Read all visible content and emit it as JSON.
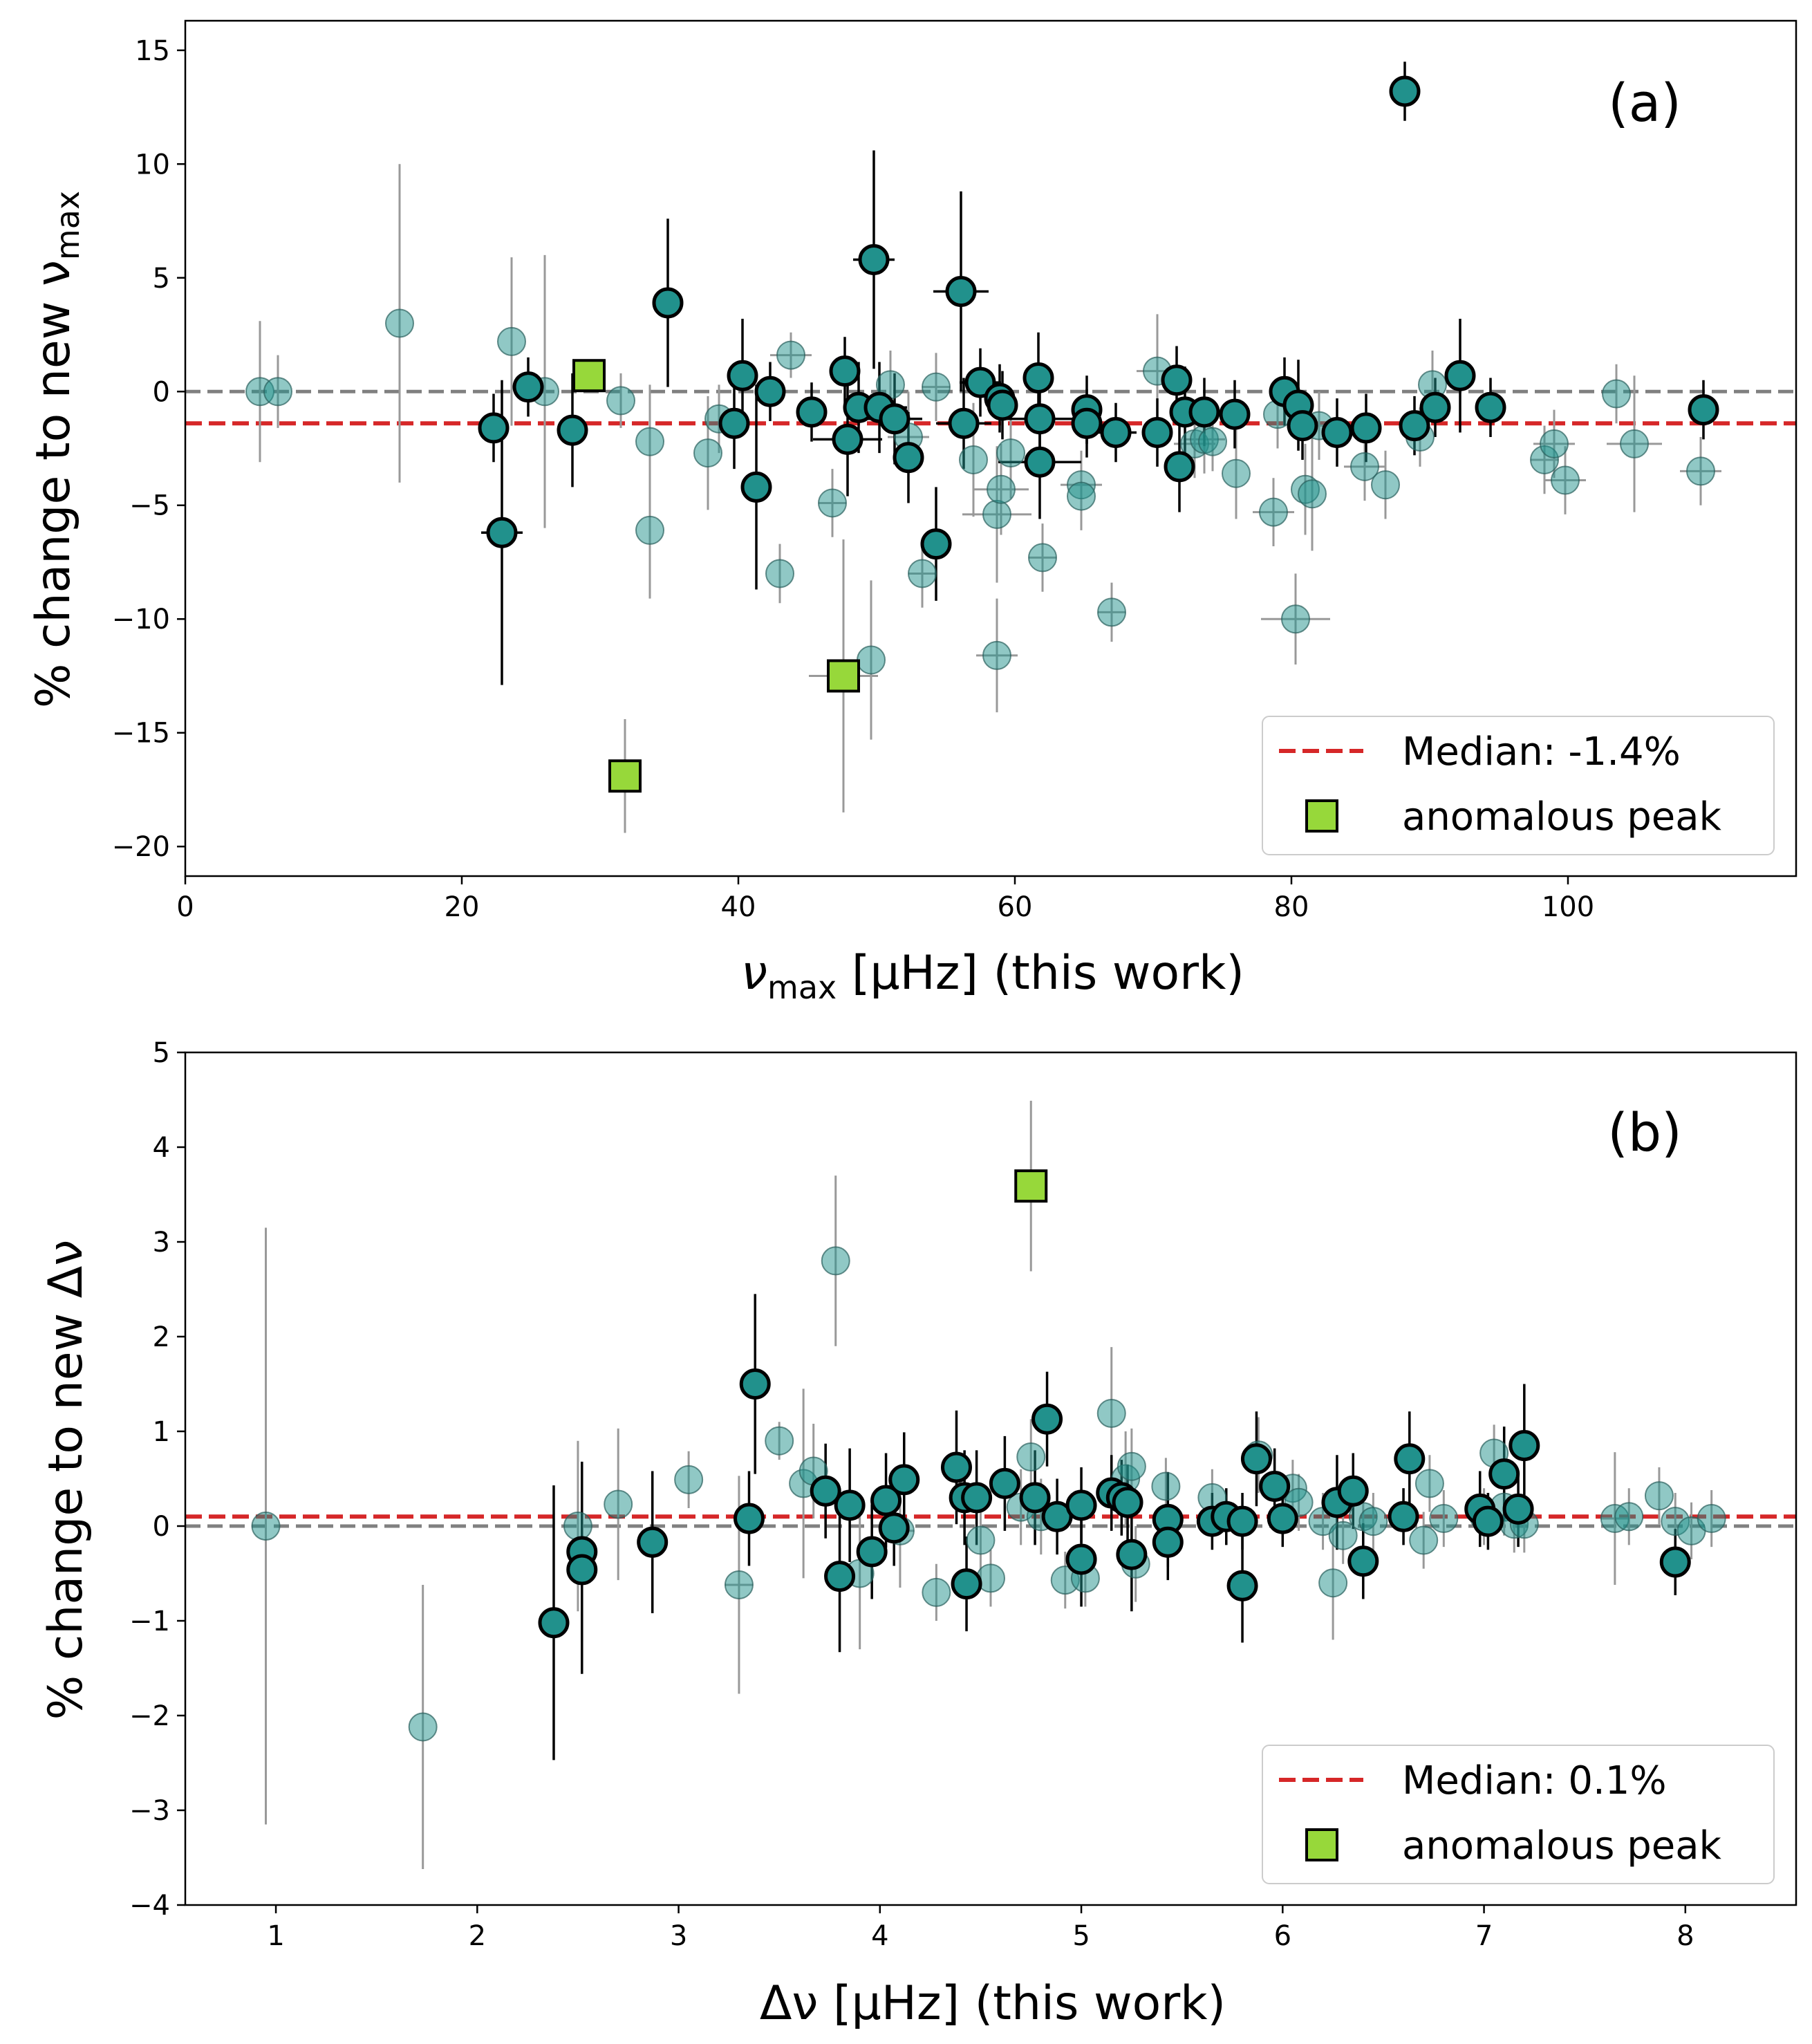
{
  "colors": {
    "median_line": "#d62728",
    "zero_line": "#808080",
    "point_fill": "#21918c",
    "point_faded_fill": "#21918c",
    "anomalous_fill": "#97d83a",
    "errorbar_strong": "#000000",
    "errorbar_faded": "#999999"
  },
  "chart_data": [
    {
      "type": "scatter",
      "panel_label": "(a)",
      "xlabel": "ν_max [μHz] (this work)",
      "xlabel_main": "ν",
      "xlabel_sub": "max",
      "xlabel_rest": " [μHz] (this work)",
      "ylabel": "% change to new ν_max",
      "ylabel_main": "% change to new ν",
      "ylabel_sub": "max",
      "xlim": [
        0,
        116.5
      ],
      "ylim": [
        -21.3,
        16.3
      ],
      "xticks": [
        0,
        20,
        40,
        60,
        80,
        100
      ],
      "yticks": [
        -20,
        -15,
        -10,
        -5,
        0,
        5,
        10,
        15
      ],
      "xtick_labels": [
        "0",
        "20",
        "40",
        "60",
        "80",
        "100"
      ],
      "ytick_labels": [
        "−20",
        "−15",
        "−10",
        "−5",
        "0",
        "5",
        "10",
        "15"
      ],
      "median": -1.4,
      "legend": {
        "location": "lower right",
        "median_label": "Median: -1.4%",
        "anomalous_label": "anomalous peak"
      },
      "faded_points": [
        [
          5.4,
          0.0,
          3.1,
          0
        ],
        [
          6.7,
          0.0,
          1.6,
          0
        ],
        [
          15.5,
          3.0,
          7.0,
          0
        ],
        [
          23.6,
          2.2,
          3.7,
          0
        ],
        [
          26.0,
          0.0,
          6.0,
          0
        ],
        [
          31.5,
          -0.4,
          1.2,
          0
        ],
        [
          33.6,
          -2.2,
          2.5,
          0
        ],
        [
          33.6,
          -6.1,
          3.0,
          0
        ],
        [
          37.8,
          -2.7,
          2.5,
          0
        ],
        [
          38.6,
          -1.2,
          1.5,
          0
        ],
        [
          43.0,
          -8.0,
          1.3,
          0
        ],
        [
          43.8,
          1.6,
          1.0,
          1.5
        ],
        [
          46.8,
          -4.9,
          1.5,
          1.0
        ],
        [
          49.6,
          -11.8,
          3.5,
          0
        ],
        [
          51.0,
          0.3,
          1.5,
          0
        ],
        [
          52.3,
          -2.0,
          2.0,
          1.5
        ],
        [
          53.3,
          -8.0,
          1.5,
          1.0
        ],
        [
          54.3,
          0.2,
          1.5,
          1.0
        ],
        [
          57.0,
          -3.0,
          2.5,
          0
        ],
        [
          58.7,
          -5.4,
          3.0,
          2.5
        ],
        [
          58.7,
          -11.6,
          2.5,
          1.5
        ],
        [
          59.0,
          -4.3,
          2.0,
          2.0
        ],
        [
          59.7,
          -2.7,
          2.0,
          0
        ],
        [
          62.0,
          -7.3,
          1.5,
          1.0
        ],
        [
          64.8,
          -4.1,
          1.5,
          1.5
        ],
        [
          64.8,
          -4.6,
          1.5,
          0
        ],
        [
          67.0,
          -9.7,
          1.3,
          1.0
        ],
        [
          70.3,
          0.9,
          2.5,
          1.5
        ],
        [
          73.0,
          -2.3,
          1.5,
          1.5
        ],
        [
          73.7,
          -2.1,
          1.5,
          1.5
        ],
        [
          74.3,
          -2.2,
          1.3,
          0
        ],
        [
          76.0,
          -3.6,
          2.0,
          0
        ],
        [
          78.7,
          -5.3,
          1.5,
          1.5
        ],
        [
          79.0,
          -1.0,
          1.5,
          0
        ],
        [
          80.3,
          -10.0,
          2.0,
          2.5
        ],
        [
          81.0,
          -4.3,
          2.0,
          0
        ],
        [
          81.5,
          -4.5,
          2.5,
          0
        ],
        [
          82.0,
          -1.5,
          1.5,
          1.5
        ],
        [
          85.3,
          -3.3,
          1.5,
          1.5
        ],
        [
          86.8,
          -4.1,
          1.5,
          0
        ],
        [
          89.3,
          -2.0,
          1.3,
          0
        ],
        [
          90.2,
          0.3,
          1.5,
          0
        ],
        [
          98.3,
          -3.0,
          1.5,
          1.0
        ],
        [
          99.0,
          -2.3,
          1.5,
          1.5
        ],
        [
          99.8,
          -3.9,
          1.5,
          1.5
        ],
        [
          103.5,
          -0.1,
          1.3,
          0
        ],
        [
          104.8,
          -2.3,
          3.0,
          2.0
        ],
        [
          109.6,
          -3.5,
          1.5,
          1.5
        ]
      ],
      "strong_points": [
        [
          22.3,
          -1.6,
          1.5,
          0
        ],
        [
          22.9,
          -6.2,
          6.7,
          1.5
        ],
        [
          24.8,
          0.2,
          1.3,
          0
        ],
        [
          28.0,
          -1.7,
          2.5,
          0
        ],
        [
          34.9,
          3.9,
          3.7,
          0
        ],
        [
          39.7,
          -1.4,
          2.0,
          0
        ],
        [
          40.3,
          0.7,
          2.5,
          0
        ],
        [
          41.3,
          -4.2,
          4.5,
          0
        ],
        [
          42.3,
          0.0,
          1.3,
          0
        ],
        [
          45.3,
          -0.9,
          1.3,
          0
        ],
        [
          47.7,
          0.9,
          1.5,
          1.0
        ],
        [
          47.9,
          -2.1,
          2.5,
          2.5
        ],
        [
          48.7,
          -0.7,
          2.0,
          0
        ],
        [
          49.8,
          5.8,
          4.8,
          1.5
        ],
        [
          50.2,
          -0.7,
          2.0,
          2.0
        ],
        [
          51.3,
          -1.2,
          2.0,
          2.0
        ],
        [
          52.3,
          -2.9,
          2.0,
          0
        ],
        [
          54.3,
          -6.7,
          2.5,
          0
        ],
        [
          56.1,
          4.4,
          4.4,
          2.0
        ],
        [
          56.3,
          -1.4,
          2.0,
          2.0
        ],
        [
          57.5,
          0.4,
          1.5,
          1.5
        ],
        [
          58.9,
          -0.3,
          1.5,
          0
        ],
        [
          59.1,
          -0.6,
          1.5,
          0
        ],
        [
          61.7,
          0.6,
          2.0,
          0
        ],
        [
          61.8,
          -1.2,
          1.5,
          2.5
        ],
        [
          61.8,
          -3.1,
          2.5,
          3.0
        ],
        [
          65.2,
          -0.8,
          1.5,
          0
        ],
        [
          65.2,
          -1.4,
          1.5,
          0
        ],
        [
          67.3,
          -1.8,
          1.3,
          1.5
        ],
        [
          70.3,
          -1.8,
          1.5,
          0
        ],
        [
          71.7,
          0.5,
          1.5,
          0
        ],
        [
          71.9,
          -3.3,
          2.0,
          0
        ],
        [
          72.3,
          -0.9,
          2.0,
          0
        ],
        [
          73.7,
          -0.9,
          1.5,
          0
        ],
        [
          75.9,
          -1.0,
          1.5,
          0
        ],
        [
          79.5,
          0.0,
          1.5,
          0
        ],
        [
          80.5,
          -0.6,
          2.0,
          0
        ],
        [
          80.8,
          -1.5,
          1.5,
          0
        ],
        [
          83.3,
          -1.8,
          1.5,
          0
        ],
        [
          85.4,
          -1.6,
          1.5,
          0
        ],
        [
          88.2,
          13.2,
          1.3,
          0
        ],
        [
          88.9,
          -1.5,
          1.3,
          0
        ],
        [
          92.2,
          0.7,
          2.5,
          0
        ],
        [
          90.4,
          -0.7,
          1.3,
          0
        ],
        [
          94.4,
          -0.7,
          1.3,
          0
        ],
        [
          109.8,
          -0.8,
          1.3,
          0
        ]
      ],
      "anomalous": [
        [
          29.2,
          0.7,
          0,
          0
        ],
        [
          31.8,
          -16.9,
          2.5,
          0
        ],
        [
          47.6,
          -12.5,
          6.0,
          2.5
        ]
      ]
    },
    {
      "type": "scatter",
      "panel_label": "(b)",
      "xlabel": "Δν [μHz] (this work)",
      "ylabel": "% change to new Δν",
      "xlim": [
        0.55,
        8.55
      ],
      "ylim": [
        -4,
        5
      ],
      "xticks": [
        1,
        2,
        3,
        4,
        5,
        6,
        7,
        8
      ],
      "yticks": [
        -4,
        -3,
        -2,
        -1,
        0,
        1,
        2,
        3,
        4,
        5
      ],
      "xtick_labels": [
        "1",
        "2",
        "3",
        "4",
        "5",
        "6",
        "7",
        "8"
      ],
      "ytick_labels": [
        "−4",
        "−3",
        "−2",
        "−1",
        "0",
        "1",
        "2",
        "3",
        "4",
        "5"
      ],
      "median": 0.1,
      "legend": {
        "location": "lower right",
        "median_label": "Median: 0.1%",
        "anomalous_label": "anomalous peak"
      },
      "faded_points": [
        [
          0.95,
          0.0,
          3.15,
          0
        ],
        [
          1.73,
          -2.12,
          1.5,
          0
        ],
        [
          2.5,
          0.0,
          0.9,
          0
        ],
        [
          2.7,
          0.23,
          0.8,
          0
        ],
        [
          3.05,
          0.49,
          0.3,
          0
        ],
        [
          3.3,
          -0.62,
          1.15,
          0.07
        ],
        [
          3.5,
          0.9,
          0.2,
          0
        ],
        [
          3.62,
          0.45,
          1.0,
          0
        ],
        [
          3.67,
          0.58,
          0.5,
          0
        ],
        [
          3.78,
          2.8,
          0.9,
          0
        ],
        [
          3.9,
          -0.5,
          0.8,
          0
        ],
        [
          4.1,
          -0.05,
          0.6,
          0.07
        ],
        [
          4.28,
          -0.7,
          0.3,
          0
        ],
        [
          4.5,
          -0.15,
          0.5,
          0
        ],
        [
          4.55,
          -0.55,
          0.3,
          0
        ],
        [
          4.7,
          0.2,
          0.4,
          0
        ],
        [
          4.75,
          0.73,
          0.4,
          0
        ],
        [
          4.8,
          0.1,
          0.4,
          0
        ],
        [
          4.92,
          -0.57,
          0.3,
          0
        ],
        [
          5.02,
          -0.55,
          0.3,
          0
        ],
        [
          5.15,
          1.19,
          0.7,
          0
        ],
        [
          5.22,
          0.5,
          0.5,
          0
        ],
        [
          5.25,
          0.63,
          0.4,
          0
        ],
        [
          5.27,
          -0.4,
          0.4,
          0
        ],
        [
          5.42,
          0.42,
          0.3,
          0
        ],
        [
          5.65,
          0.3,
          0.3,
          0
        ],
        [
          5.88,
          0.75,
          0.4,
          0
        ],
        [
          6.05,
          0.4,
          0.3,
          0
        ],
        [
          6.08,
          0.25,
          0.3,
          0
        ],
        [
          6.2,
          0.05,
          0.3,
          0
        ],
        [
          6.25,
          -0.6,
          0.6,
          0
        ],
        [
          6.3,
          -0.1,
          0.3,
          0
        ],
        [
          6.4,
          0.1,
          0.3,
          0
        ],
        [
          6.45,
          0.05,
          0.3,
          0
        ],
        [
          6.6,
          0.1,
          0.3,
          0
        ],
        [
          6.7,
          -0.15,
          0.3,
          0
        ],
        [
          6.73,
          0.45,
          0.3,
          0
        ],
        [
          6.8,
          0.08,
          0.3,
          0
        ],
        [
          7.0,
          0.1,
          0.3,
          0
        ],
        [
          7.05,
          0.77,
          0.3,
          0
        ],
        [
          7.1,
          0.2,
          0.3,
          0
        ],
        [
          7.15,
          0.02,
          0.3,
          0
        ],
        [
          7.2,
          0.02,
          0.3,
          0
        ],
        [
          7.65,
          0.08,
          0.7,
          0.07
        ],
        [
          7.72,
          0.1,
          0.3,
          0
        ],
        [
          7.87,
          0.32,
          0.3,
          0
        ],
        [
          7.95,
          0.05,
          0.3,
          0
        ],
        [
          8.03,
          -0.05,
          0.3,
          0
        ],
        [
          8.13,
          0.08,
          0.3,
          0
        ]
      ],
      "strong_points": [
        [
          2.38,
          -1.02,
          1.45,
          0
        ],
        [
          2.52,
          -0.27,
          0.95,
          0
        ],
        [
          2.52,
          -0.46,
          1.1,
          0
        ],
        [
          2.87,
          -0.17,
          0.75,
          0
        ],
        [
          3.35,
          0.08,
          0.5,
          0
        ],
        [
          3.38,
          1.5,
          0.95,
          0
        ],
        [
          3.73,
          0.37,
          0.5,
          0
        ],
        [
          3.8,
          -0.53,
          0.8,
          0
        ],
        [
          3.85,
          0.22,
          0.6,
          0
        ],
        [
          3.96,
          -0.27,
          0.5,
          0
        ],
        [
          4.03,
          0.27,
          0.5,
          0
        ],
        [
          4.07,
          -0.02,
          0.4,
          0
        ],
        [
          4.12,
          0.49,
          0.5,
          0
        ],
        [
          4.38,
          0.62,
          0.6,
          0
        ],
        [
          4.42,
          0.3,
          0.5,
          0
        ],
        [
          4.43,
          -0.61,
          0.5,
          0
        ],
        [
          4.48,
          0.3,
          0.5,
          0
        ],
        [
          4.62,
          0.45,
          0.5,
          0
        ],
        [
          4.77,
          0.3,
          0.5,
          0
        ],
        [
          4.83,
          1.13,
          0.5,
          0
        ],
        [
          4.88,
          0.1,
          0.4,
          0
        ],
        [
          5.0,
          0.22,
          0.4,
          0
        ],
        [
          5.0,
          -0.35,
          0.5,
          0
        ],
        [
          5.15,
          0.35,
          0.4,
          0
        ],
        [
          5.2,
          0.3,
          0.4,
          0
        ],
        [
          5.23,
          0.25,
          0.4,
          0
        ],
        [
          5.25,
          -0.3,
          0.6,
          0
        ],
        [
          5.43,
          0.07,
          0.5,
          0
        ],
        [
          5.43,
          -0.17,
          0.4,
          0
        ],
        [
          5.65,
          0.05,
          0.3,
          0
        ],
        [
          5.72,
          0.1,
          0.3,
          0
        ],
        [
          5.8,
          0.05,
          0.3,
          0
        ],
        [
          5.8,
          -0.63,
          0.6,
          0
        ],
        [
          5.87,
          0.71,
          0.5,
          0
        ],
        [
          5.96,
          0.42,
          0.4,
          0
        ],
        [
          6.0,
          0.08,
          0.3,
          0
        ],
        [
          6.27,
          0.25,
          0.5,
          0
        ],
        [
          6.35,
          0.37,
          0.4,
          0
        ],
        [
          6.4,
          -0.37,
          0.4,
          0
        ],
        [
          6.6,
          0.1,
          0.3,
          0
        ],
        [
          6.63,
          0.71,
          0.5,
          0
        ],
        [
          6.98,
          0.18,
          0.4,
          0
        ],
        [
          7.02,
          0.05,
          0.3,
          0
        ],
        [
          7.1,
          0.55,
          0.5,
          0
        ],
        [
          7.17,
          0.18,
          0.4,
          0
        ],
        [
          7.2,
          0.85,
          0.65,
          0
        ],
        [
          7.95,
          -0.38,
          0.35,
          0
        ]
      ],
      "anomalous": [
        [
          4.75,
          3.59,
          0.9,
          0
        ]
      ]
    }
  ]
}
